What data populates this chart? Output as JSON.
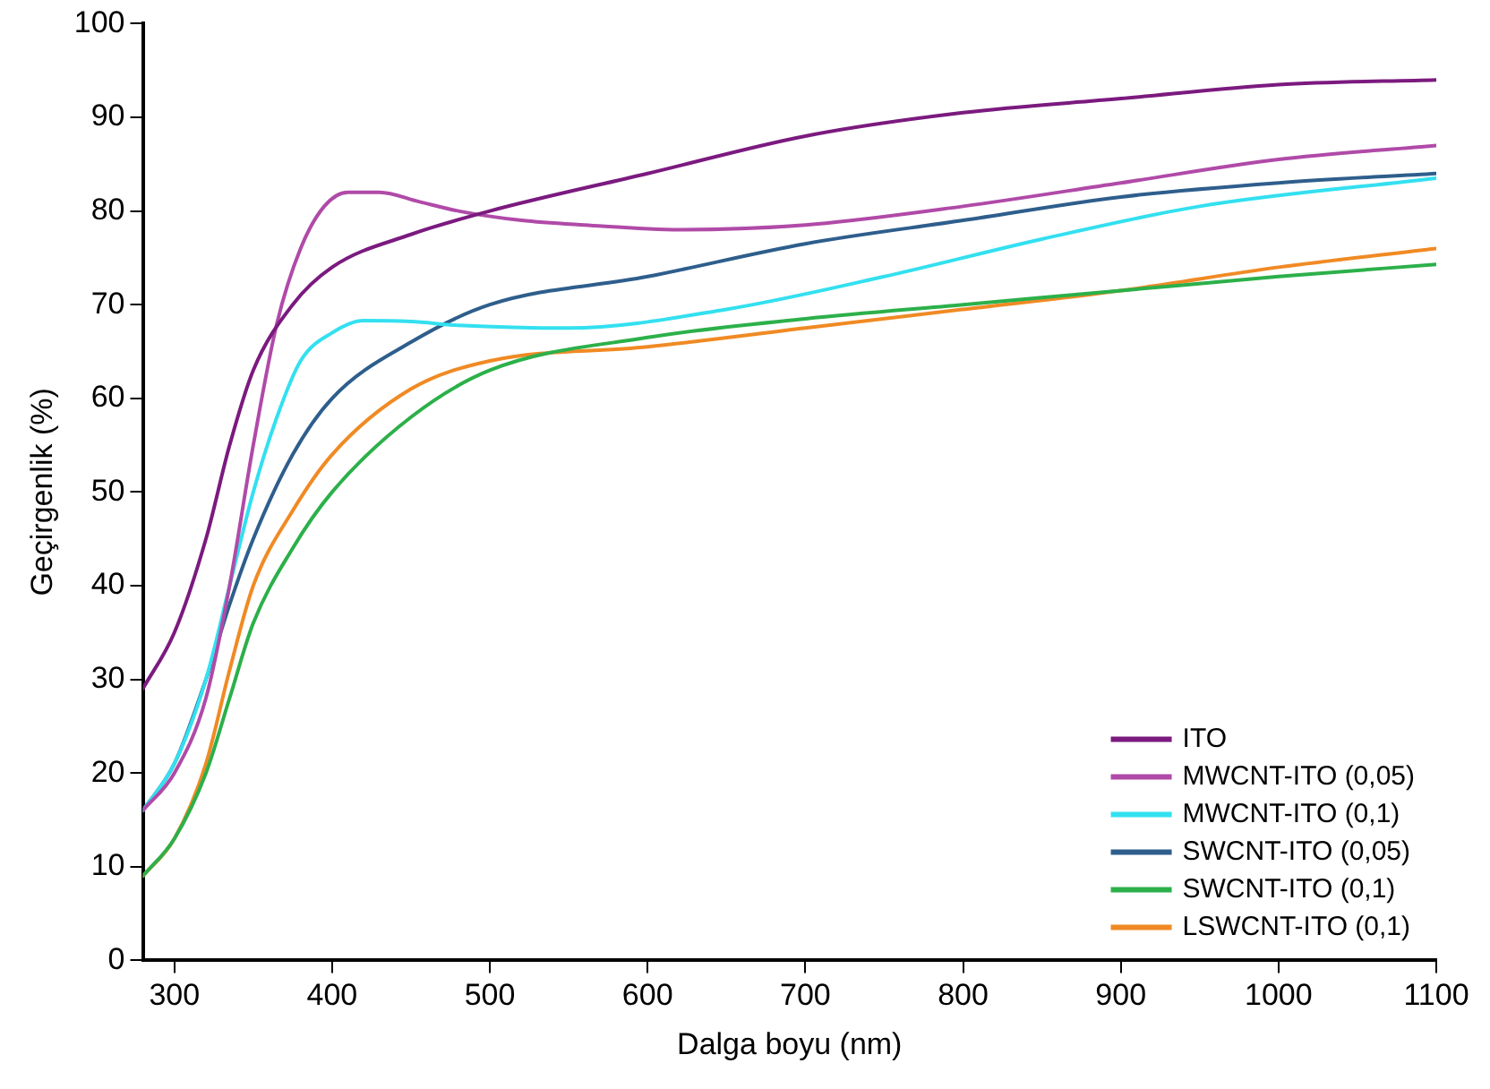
{
  "chart_data": {
    "type": "line",
    "xlabel": "Dalga boyu (nm)",
    "ylabel": "Geçirgenlik (%)",
    "xlim": [
      280,
      1100
    ],
    "xticks": [
      300,
      400,
      500,
      600,
      700,
      800,
      900,
      1000,
      1100
    ],
    "ylim": [
      0,
      100
    ],
    "yticks": [
      0,
      10,
      20,
      30,
      40,
      50,
      60,
      70,
      80,
      90,
      100
    ],
    "grid": false,
    "legend": "bottom right",
    "marker": "none",
    "line_style": "solid",
    "series": [
      {
        "name": "ITO",
        "color": "#7b1a7f",
        "x": [
          280,
          300,
          320,
          335,
          350,
          375,
          400,
          450,
          500,
          600,
          700,
          800,
          900,
          1000,
          1100
        ],
        "values": [
          29,
          35,
          45,
          55,
          63,
          70,
          74,
          77.5,
          80,
          84,
          88,
          90.5,
          92,
          93.5,
          94
        ]
      },
      {
        "name": "MWCNT-ITO (0,05)",
        "color": "#b04aa8",
        "x": [
          280,
          300,
          320,
          335,
          350,
          365,
          380,
          395,
          410,
          430,
          455,
          480,
          520,
          560,
          620,
          700,
          800,
          900,
          1000,
          1100
        ],
        "values": [
          16,
          20,
          28,
          40,
          55,
          68,
          76,
          80.5,
          82,
          82,
          81,
          80,
          79,
          78.5,
          78,
          78.5,
          80.5,
          83,
          85.5,
          87
        ]
      },
      {
        "name": "MWCNT-ITO (0,1)",
        "color": "#33e0f0",
        "x": [
          280,
          300,
          320,
          335,
          350,
          365,
          380,
          400,
          420,
          450,
          480,
          550,
          650,
          750,
          850,
          950,
          1100
        ],
        "values": [
          16,
          21,
          30,
          40,
          50,
          58,
          64,
          67,
          68.3,
          68.2,
          67.8,
          67.5,
          69.5,
          73,
          77,
          80.5,
          83.5
        ]
      },
      {
        "name": "SWCNT-ITO (0,05)",
        "color": "#2e5e8c",
        "x": [
          280,
          300,
          320,
          335,
          350,
          375,
          400,
          450,
          500,
          600,
          700,
          800,
          900,
          1000,
          1100
        ],
        "values": [
          16,
          21,
          30,
          38,
          45,
          54,
          60,
          66,
          70,
          73,
          76.5,
          79,
          81.5,
          83,
          84
        ]
      },
      {
        "name": "SWCNT-ITO (0,1)",
        "color": "#2cb04a",
        "x": [
          280,
          300,
          320,
          335,
          350,
          375,
          400,
          450,
          500,
          600,
          700,
          800,
          900,
          1000,
          1100
        ],
        "values": [
          9,
          13,
          20,
          28,
          36,
          44,
          50,
          58,
          63,
          66.5,
          68.5,
          70,
          71.5,
          73,
          74.3
        ]
      },
      {
        "name": "LSWCNT-ITO (0,1)",
        "color": "#f08a24",
        "x": [
          280,
          300,
          320,
          335,
          350,
          375,
          400,
          450,
          500,
          600,
          700,
          800,
          900,
          1000,
          1100
        ],
        "values": [
          9,
          13,
          21,
          31,
          40,
          48,
          54,
          61,
          64,
          65.5,
          67.5,
          69.5,
          71.5,
          74,
          76
        ]
      }
    ]
  }
}
